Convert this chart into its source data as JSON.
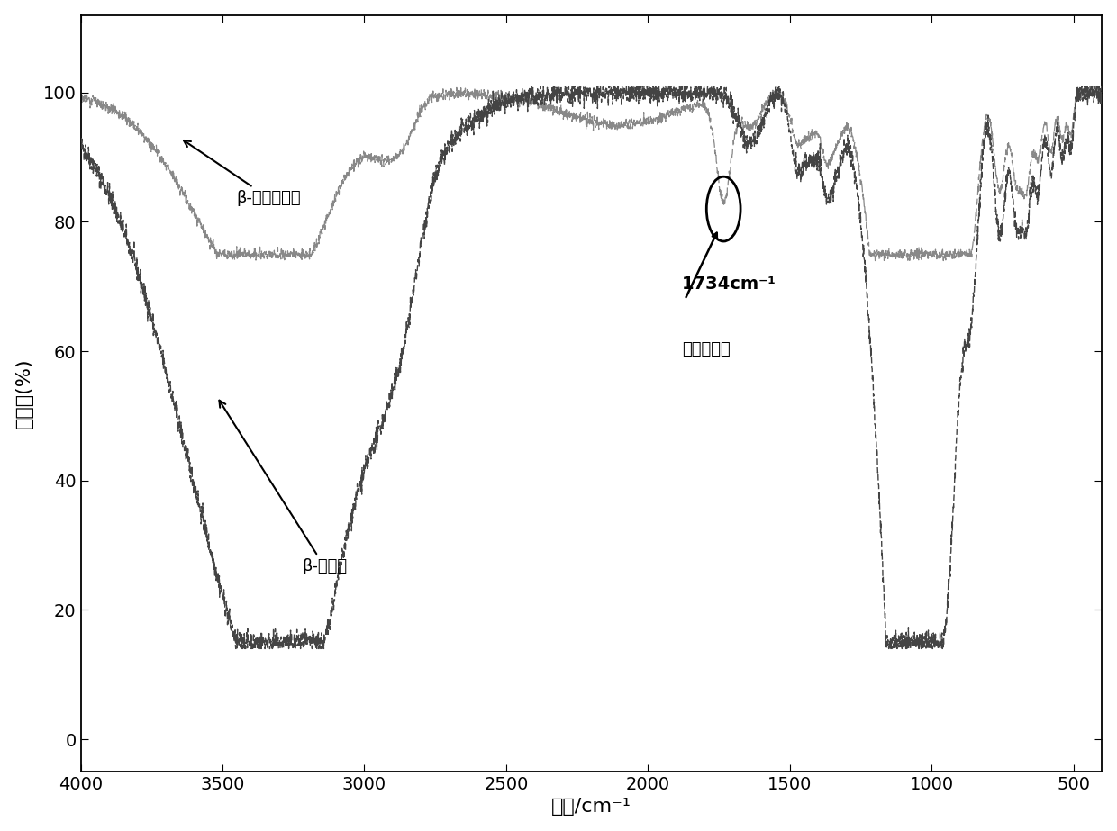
{
  "title": "",
  "xlabel": "波数/cm⁻¹",
  "ylabel": "透过率(%)",
  "xlim": [
    4000,
    400
  ],
  "ylim": [
    -5,
    112
  ],
  "yticks": [
    0,
    20,
    40,
    60,
    80,
    100
  ],
  "xticks": [
    4000,
    3500,
    3000,
    2500,
    2000,
    1500,
    1000,
    500
  ],
  "bg_color": "#ffffff",
  "annotation1_text": "β-环糊精多醇",
  "annotation2_text": "β-环糊精",
  "annotation3_line1": "1734cm⁻¹",
  "annotation4_line2": "酶基特征峰"
}
